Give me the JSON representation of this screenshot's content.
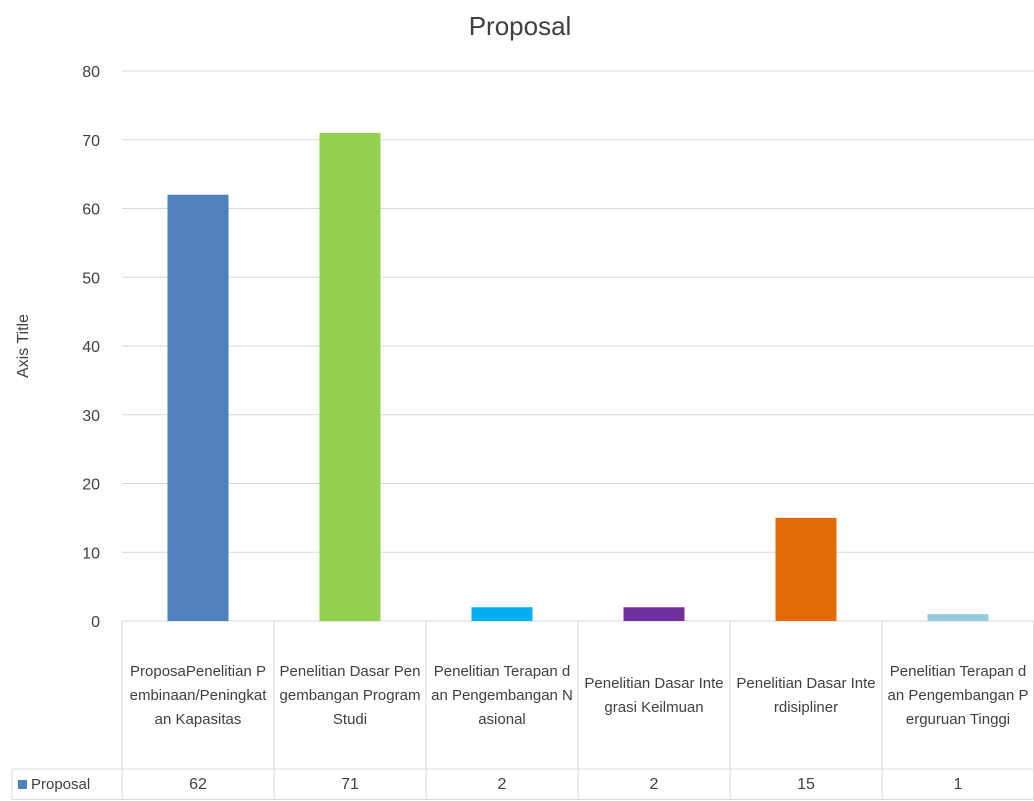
{
  "chart_data": {
    "type": "bar",
    "title": "Proposal",
    "xlabel": "",
    "ylabel": "Axis Title",
    "ylim": [
      0,
      80
    ],
    "yticks": [
      0,
      10,
      20,
      30,
      40,
      50,
      60,
      70,
      80
    ],
    "grid": true,
    "legend_position": "data-table-left",
    "categories": [
      "ProposaPenelitian Pembinaan/Peningkatan Kapasitas",
      "Penelitian Dasar Pengembangan Program Studi",
      "Penelitian Terapan dan Pengembangan Nasional",
      "Penelitian Dasar Integrasi Keilmuan",
      "Penelitian Dasar Interdisipliner",
      "Penelitian Terapan dan Pengembangan Perguruan Tinggi"
    ],
    "series": [
      {
        "name": "Proposal",
        "values": [
          62,
          71,
          2,
          2,
          15,
          1
        ]
      }
    ],
    "bar_colors": [
      "#4f81bd",
      "#92d050",
      "#00b0f0",
      "#7030a0",
      "#e36c09",
      "#93cddd"
    ],
    "legend_swatch_color": "#4f81bd"
  }
}
